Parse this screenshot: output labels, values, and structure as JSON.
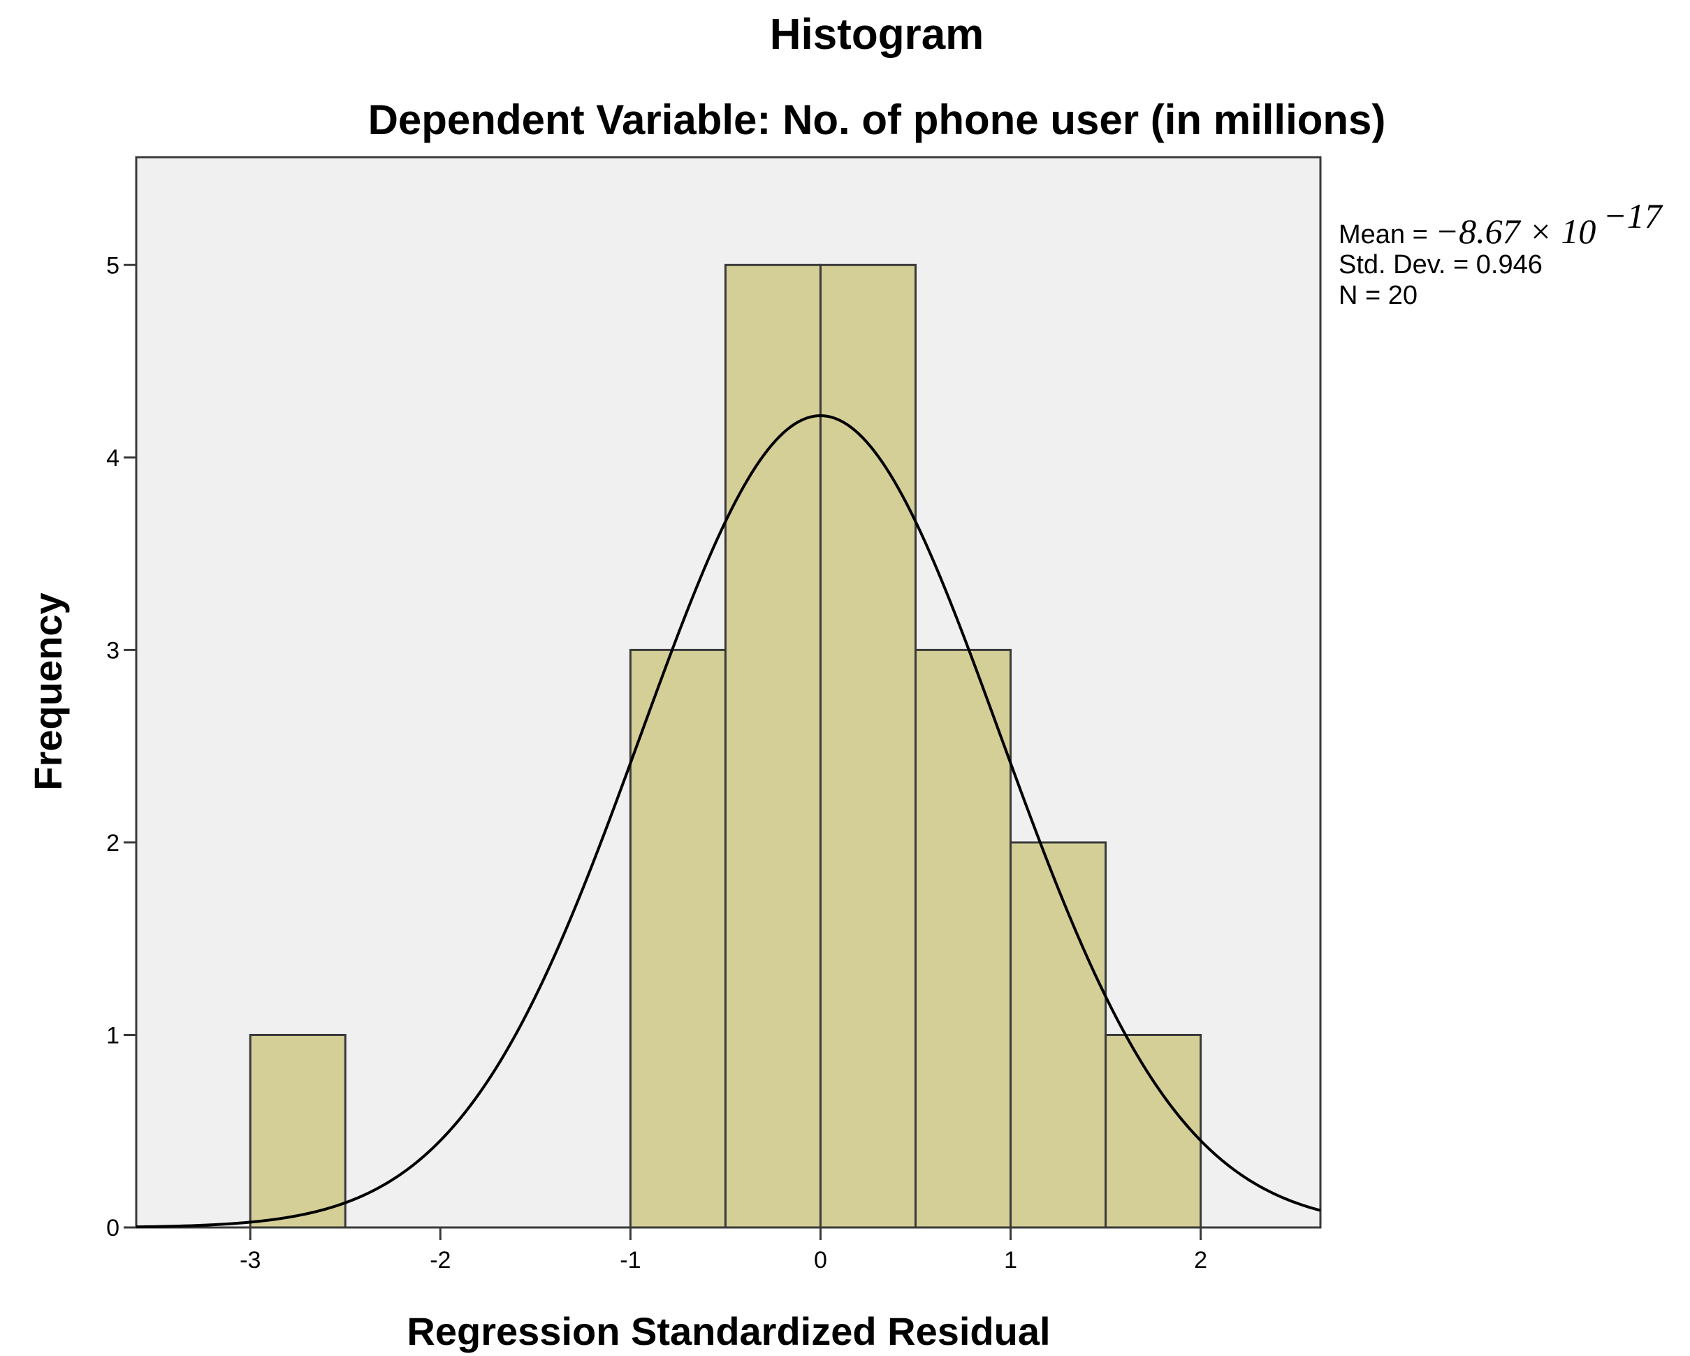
{
  "chart_data": {
    "type": "bar",
    "title": "Histogram",
    "subtitle": "Dependent Variable: No. of phone user (in millions)",
    "xlabel": "Regression Standardized Residual",
    "ylabel": "Frequency",
    "xlim": [
      -3.6,
      2.63
    ],
    "ylim": [
      0,
      5.56
    ],
    "xticks": [
      -3,
      -2,
      -1,
      0,
      1,
      2
    ],
    "xtick_labels": [
      "-3",
      "-2",
      "-1",
      "0",
      "1",
      "2"
    ],
    "yticks": [
      0,
      1,
      2,
      3,
      4,
      5
    ],
    "ytick_labels": [
      "0",
      "1",
      "2",
      "3",
      "4",
      "5"
    ],
    "bins": [
      {
        "x0": -3.0,
        "x1": -2.5,
        "count": 1
      },
      {
        "x0": -1.0,
        "x1": -0.5,
        "count": 3
      },
      {
        "x0": -0.5,
        "x1": 0.0,
        "count": 5
      },
      {
        "x0": 0.0,
        "x1": 0.5,
        "count": 5
      },
      {
        "x0": 0.5,
        "x1": 1.0,
        "count": 3
      },
      {
        "x0": 1.0,
        "x1": 1.5,
        "count": 2
      },
      {
        "x0": 1.5,
        "x1": 2.0,
        "count": 1
      }
    ],
    "normal_curve": {
      "mean": 0,
      "std": 0.946,
      "n": 20,
      "bin_width": 0.5
    },
    "stats": {
      "mean_label": "Mean = ",
      "mean_value": "−8.67 × 10",
      "mean_exponent": "−17",
      "std_label": "Std. Dev. = 0.946",
      "n_label": "N = 20"
    },
    "grid": false,
    "legend": "none",
    "colors": {
      "bar_fill": "#d4cf97",
      "bar_stroke": "#3a3a3a",
      "plot_background": "#f0f0f0",
      "curve": "#000000"
    }
  }
}
